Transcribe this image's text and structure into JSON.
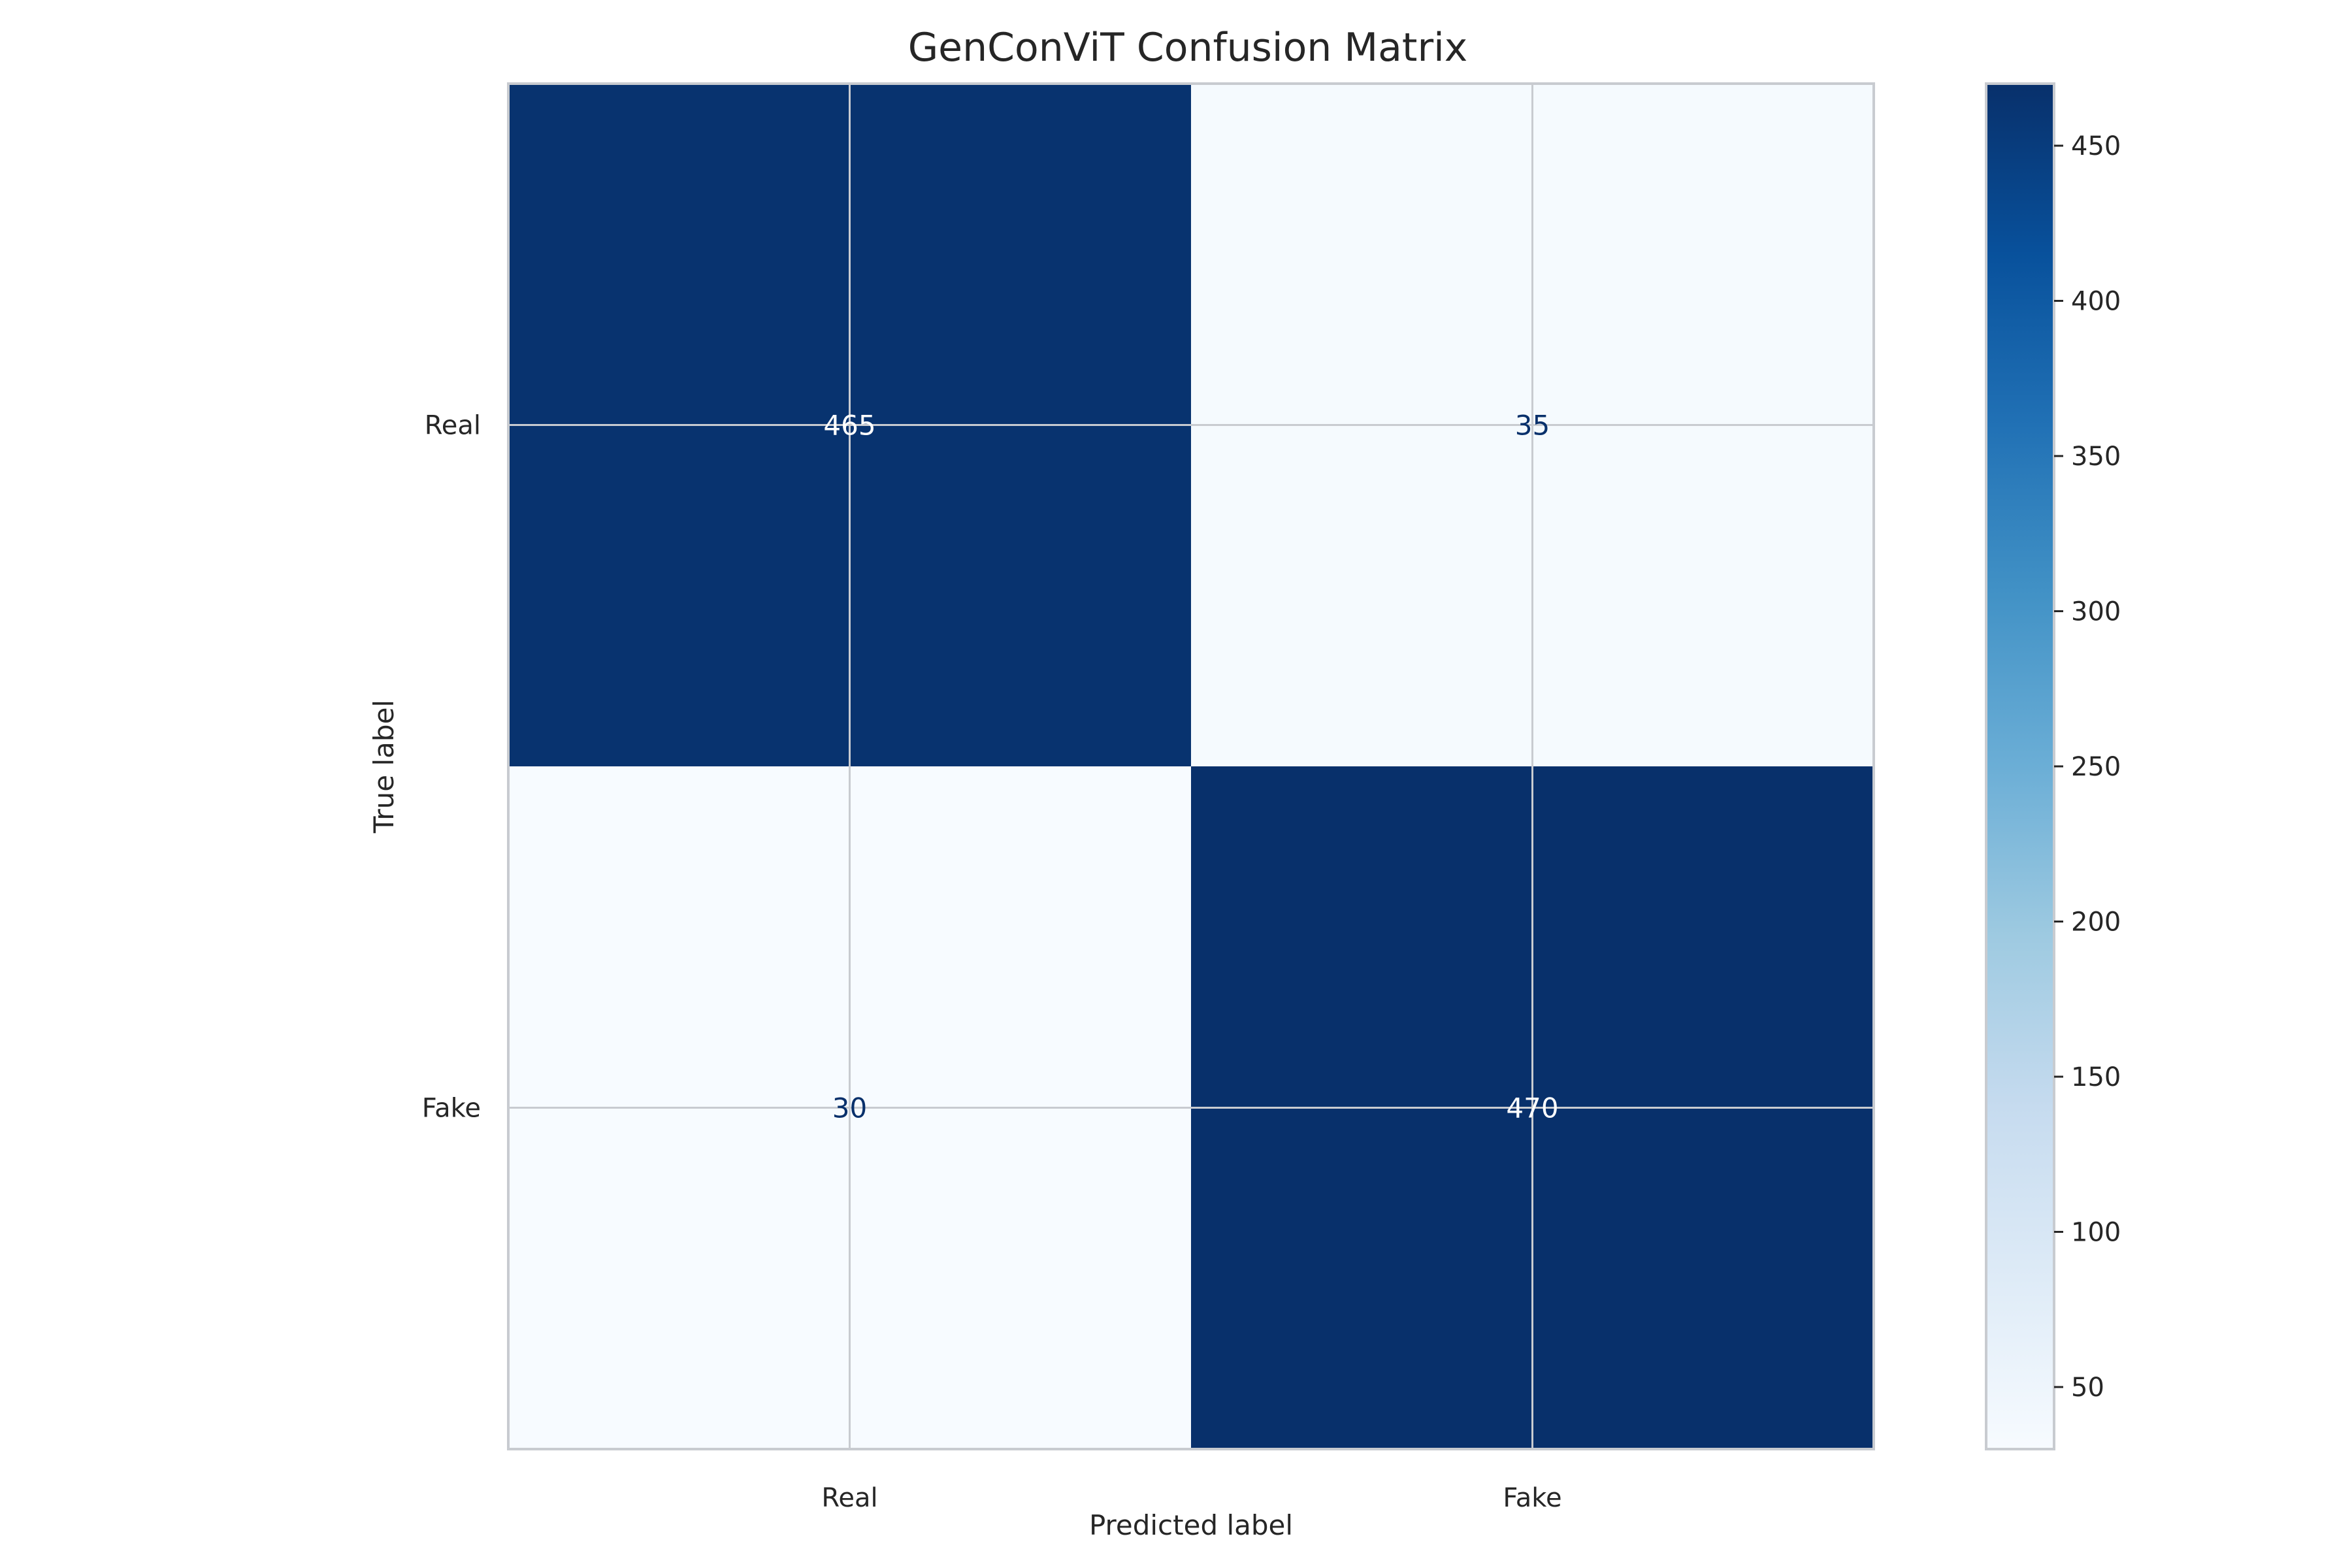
{
  "chart_data": {
    "type": "heatmap",
    "title": "GenConViT Confusion Matrix",
    "xlabel": "Predicted label",
    "ylabel": "True label",
    "x_categories": [
      "Real",
      "Fake"
    ],
    "y_categories": [
      "Real",
      "Fake"
    ],
    "values": [
      [
        465,
        35
      ],
      [
        30,
        470
      ]
    ],
    "colormap": "Blues",
    "colorbar": {
      "range": [
        30,
        470
      ],
      "ticks": [
        50,
        100,
        150,
        200,
        250,
        300,
        350,
        400,
        450
      ],
      "tick_labels": [
        "50",
        "100",
        "150",
        "200",
        "250",
        "300",
        "350",
        "400",
        "450"
      ]
    },
    "grid": true
  },
  "colors": {
    "grid": "#c8cbd0",
    "axis_frame": "#c8cbd0",
    "text": "#262626",
    "label_on_dark": "#ffffff",
    "label_on_light": "#08306b"
  }
}
